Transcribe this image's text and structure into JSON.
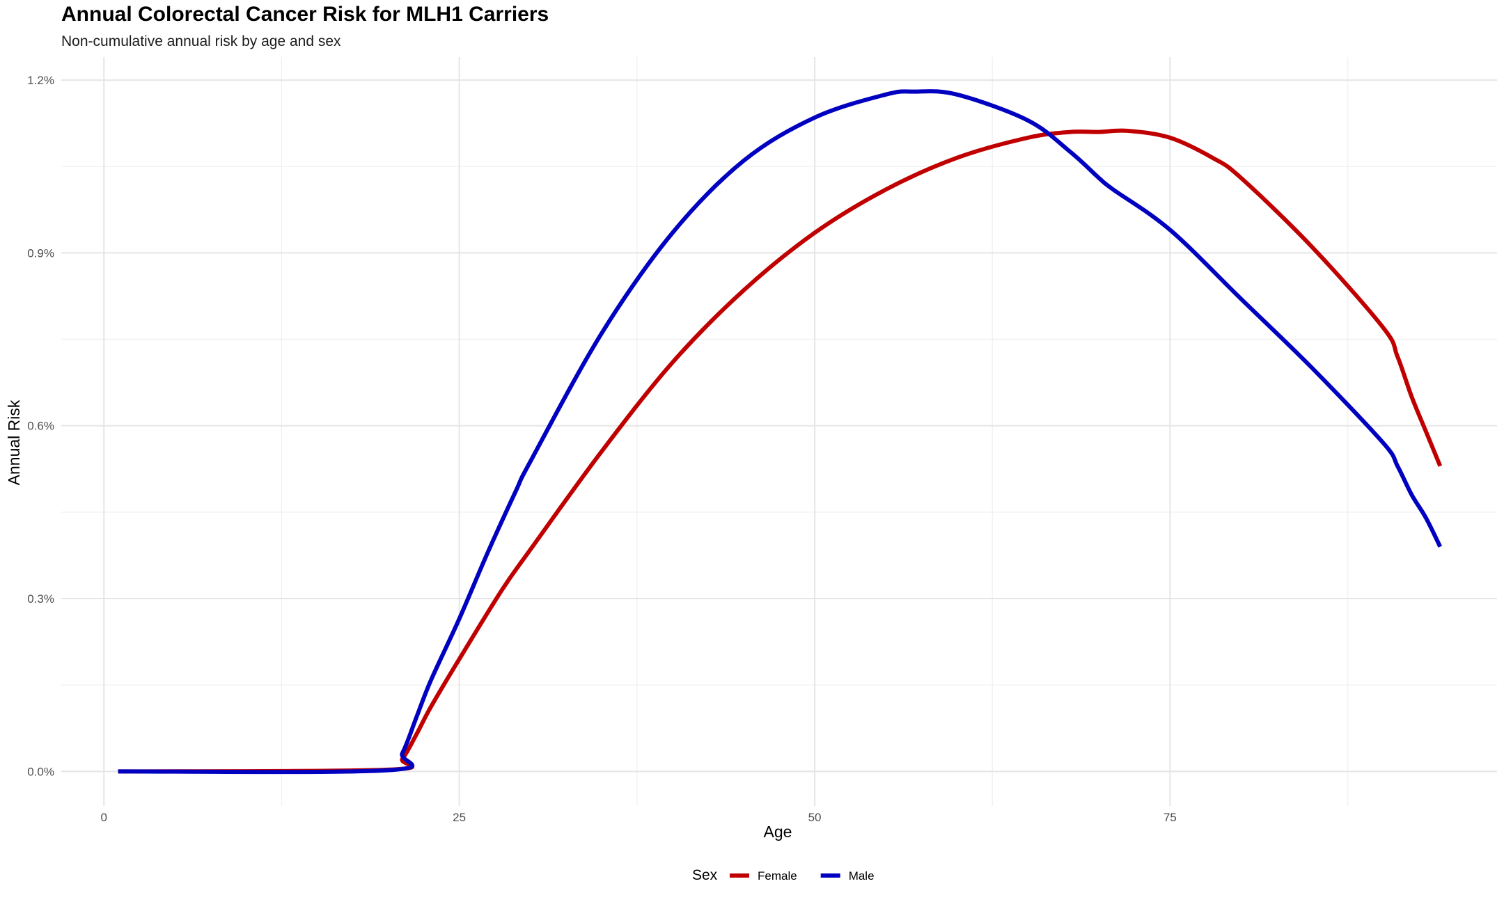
{
  "chart_data": {
    "type": "line",
    "title": "Annual Colorectal Cancer Risk for MLH1 Carriers",
    "subtitle": "Non-cumulative annual risk by age and sex",
    "xlabel": "Age",
    "ylabel": "Annual Risk",
    "xlim": [
      -3,
      98
    ],
    "ylim": [
      -0.0006,
      0.0124
    ],
    "x_ticks": [
      0,
      25,
      50,
      75
    ],
    "x_tick_labels": [
      "0",
      "25",
      "50",
      "75"
    ],
    "y_ticks": [
      0,
      0.003,
      0.006,
      0.009,
      0.012
    ],
    "y_tick_labels": [
      "0.0%",
      "0.3%",
      "0.6%",
      "0.9%",
      "1.2%"
    ],
    "grid": true,
    "legend": {
      "title": "Sex",
      "position": "bottom"
    },
    "series": [
      {
        "name": "Female",
        "color": "#C00000",
        "x": [
          1,
          20,
          21,
          22,
          23,
          25,
          28,
          30,
          35,
          40,
          45,
          50,
          55,
          60,
          65,
          68,
          70,
          72,
          75,
          78,
          80,
          85,
          90,
          91,
          92,
          93,
          94
        ],
        "y": [
          0,
          3e-05,
          0.00022,
          0.00065,
          0.00112,
          0.00195,
          0.00315,
          0.00385,
          0.00555,
          0.0071,
          0.00835,
          0.00935,
          0.0101,
          0.01065,
          0.011,
          0.0111,
          0.0111,
          0.01112,
          0.011,
          0.01065,
          0.0103,
          0.0091,
          0.0077,
          0.0072,
          0.0065,
          0.0059,
          0.0053
        ]
      },
      {
        "name": "Male",
        "color": "#0000C0",
        "x": [
          1,
          20,
          21,
          22,
          23,
          25,
          27,
          29,
          30,
          35,
          40,
          45,
          50,
          55,
          57,
          60,
          65,
          68,
          70,
          71,
          75,
          80,
          85,
          90,
          91,
          92,
          93,
          94
        ],
        "y": [
          0,
          2e-05,
          0.00032,
          0.00095,
          0.00158,
          0.00265,
          0.0038,
          0.00488,
          0.00538,
          0.0076,
          0.00935,
          0.0106,
          0.01135,
          0.01175,
          0.0118,
          0.01175,
          0.0113,
          0.01075,
          0.0103,
          0.0101,
          0.0094,
          0.0082,
          0.007,
          0.0057,
          0.0053,
          0.0048,
          0.0044,
          0.0039
        ]
      }
    ]
  }
}
